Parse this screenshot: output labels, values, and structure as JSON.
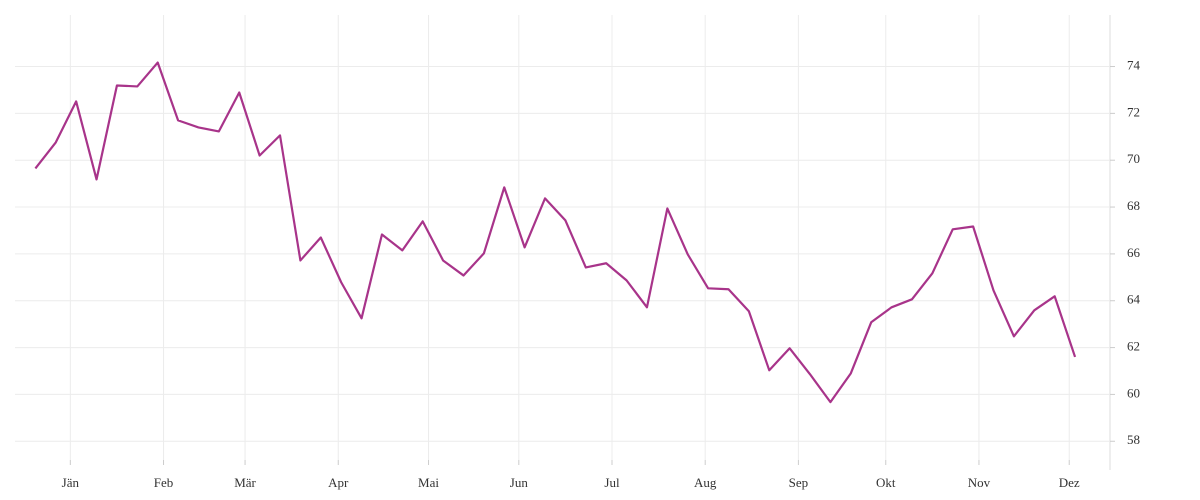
{
  "chart_data": {
    "type": "line",
    "x": [
      4,
      11,
      18,
      25,
      32,
      39,
      46,
      53,
      60,
      67,
      74,
      81,
      88,
      95,
      102,
      109,
      116,
      123,
      130,
      137,
      144,
      151,
      158,
      165,
      172,
      179,
      186,
      193,
      200,
      207,
      214,
      221,
      228,
      235,
      242,
      249,
      256,
      263,
      270,
      277,
      284,
      291,
      298,
      305,
      312,
      319,
      326,
      333,
      340,
      347,
      354,
      361
    ],
    "series": [
      {
        "color": "#a8348a",
        "values": [
          69.65,
          70.76,
          72.51,
          69.18,
          73.19,
          73.15,
          74.17,
          71.7,
          71.4,
          71.23,
          72.89,
          70.2,
          71.06,
          65.72,
          66.7,
          64.79,
          63.25,
          66.83,
          66.15,
          67.39,
          65.72,
          65.08,
          66.02,
          68.84,
          66.28,
          68.37,
          67.43,
          65.42,
          65.6,
          64.87,
          63.72,
          67.94,
          65.98,
          64.53,
          64.49,
          63.55,
          61.03,
          61.97,
          60.86,
          59.67,
          60.9,
          63.08,
          63.72,
          64.06,
          65.17,
          67.05,
          67.17,
          64.44,
          62.48,
          63.59,
          64.19,
          61.6
        ]
      }
    ],
    "xlim": [
      -3,
      373
    ],
    "xticks": [
      {
        "value": 16,
        "label": "Jän"
      },
      {
        "value": 48,
        "label": "Feb"
      },
      {
        "value": 76,
        "label": "Mär"
      },
      {
        "value": 108,
        "label": "Apr"
      },
      {
        "value": 139,
        "label": "Mai"
      },
      {
        "value": 170,
        "label": "Jun"
      },
      {
        "value": 202,
        "label": "Jul"
      },
      {
        "value": 234,
        "label": "Aug"
      },
      {
        "value": 266,
        "label": "Sep"
      },
      {
        "value": 296,
        "label": "Okt"
      },
      {
        "value": 328,
        "label": "Nov"
      },
      {
        "value": 359,
        "label": "Dez"
      }
    ],
    "ylim": [
      57.2,
      76.2
    ],
    "yticks": [
      58,
      60,
      62,
      64,
      66,
      68,
      70,
      72,
      74
    ],
    "grid": true
  }
}
